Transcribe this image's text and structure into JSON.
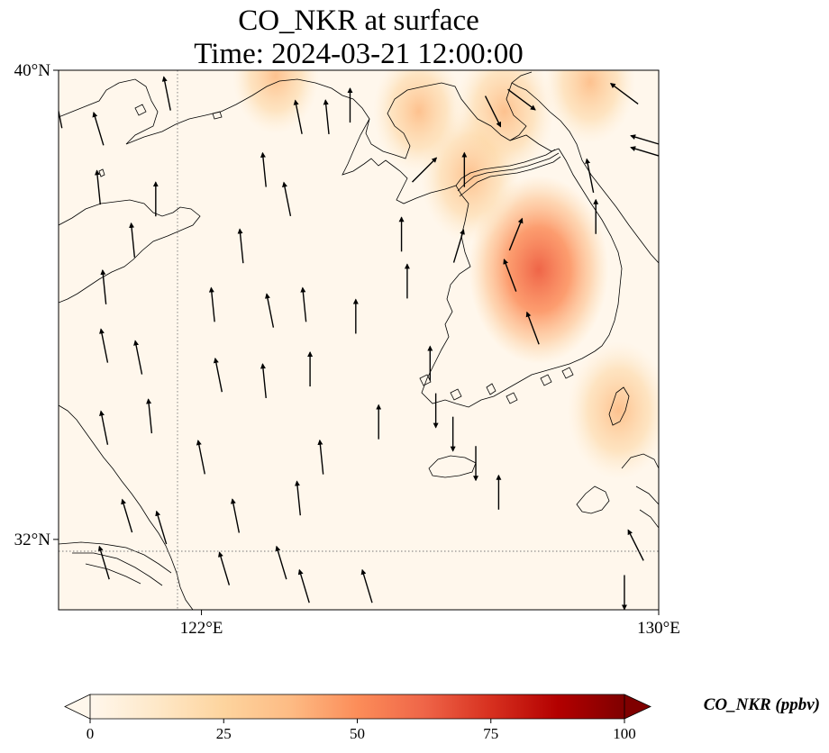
{
  "title": {
    "line1": "CO_NKR at surface",
    "line2": "Time: 2024-03-21 12:00:00"
  },
  "map": {
    "lon_range": [
      119.5,
      130
    ],
    "lat_range": [
      30.8,
      40
    ],
    "x_ticks": [
      {
        "value": 122,
        "label": "122°E"
      },
      {
        "value": 130,
        "label": "130°E"
      }
    ],
    "y_ticks": [
      {
        "value": 40,
        "label": "40°N"
      },
      {
        "value": 32,
        "label": "32°N"
      }
    ],
    "gridlines": "dotted at 122°E and 32°N",
    "features": [
      "coastlines",
      "CO concentration field",
      "wind vectors"
    ],
    "colormap": "OrRd"
  },
  "colorbar": {
    "label": "CO_NKR (ppbv)",
    "range": [
      0,
      100
    ],
    "extend": "both",
    "ticks": [
      {
        "value": 0,
        "label": "0"
      },
      {
        "value": 25,
        "label": "25"
      },
      {
        "value": 50,
        "label": "50"
      },
      {
        "value": 75,
        "label": "75"
      },
      {
        "value": 100,
        "label": "100"
      }
    ],
    "colors": [
      "#fff7ec",
      "#fee8c8",
      "#fdd49e",
      "#fdbb84",
      "#fc8d59",
      "#ef6548",
      "#d7301f",
      "#b30000",
      "#7f0000"
    ]
  },
  "chart_data": {
    "type": "heatmap",
    "title": "CO_NKR at surface\nTime: 2024-03-21 12:00:00",
    "xlabel": "",
    "ylabel": "",
    "xlim": [
      119.5,
      130
    ],
    "ylim": [
      30.8,
      40
    ],
    "value_range": [
      0,
      100
    ],
    "unit": "ppbv",
    "plumes": [
      {
        "lon": 127.9,
        "lat": 36.6,
        "value": 55
      },
      {
        "lon": 127.3,
        "lat": 39.3,
        "value": 30
      },
      {
        "lon": 126.7,
        "lat": 38.2,
        "value": 30
      },
      {
        "lon": 125.8,
        "lat": 39.3,
        "value": 25
      },
      {
        "lon": 123.3,
        "lat": 39.9,
        "value": 22
      },
      {
        "lon": 129.3,
        "lat": 34.2,
        "value": 32
      },
      {
        "lon": 128.8,
        "lat": 39.8,
        "value": 25
      }
    ],
    "wind_vectors": [
      {
        "lon": 119.5,
        "lat": 39.3,
        "u": -0.2,
        "v": 1
      },
      {
        "lon": 120.2,
        "lat": 39.0,
        "u": -0.3,
        "v": 1
      },
      {
        "lon": 120.2,
        "lat": 38.0,
        "u": -0.1,
        "v": 1
      },
      {
        "lon": 121.2,
        "lat": 37.8,
        "u": 0,
        "v": 1
      },
      {
        "lon": 121.4,
        "lat": 39.6,
        "u": -0.2,
        "v": 1
      },
      {
        "lon": 122.7,
        "lat": 37.0,
        "u": -0.1,
        "v": 1
      },
      {
        "lon": 123.1,
        "lat": 38.3,
        "u": -0.1,
        "v": 1
      },
      {
        "lon": 123.5,
        "lat": 37.8,
        "u": -0.2,
        "v": 1
      },
      {
        "lon": 123.7,
        "lat": 39.2,
        "u": -0.2,
        "v": 1
      },
      {
        "lon": 124.2,
        "lat": 39.2,
        "u": -0.1,
        "v": 1
      },
      {
        "lon": 124.6,
        "lat": 39.4,
        "u": 0,
        "v": 1
      },
      {
        "lon": 120.8,
        "lat": 37.1,
        "u": -0.1,
        "v": 1
      },
      {
        "lon": 120.3,
        "lat": 36.3,
        "u": -0.1,
        "v": 1
      },
      {
        "lon": 122.2,
        "lat": 36.0,
        "u": -0.1,
        "v": 1
      },
      {
        "lon": 123.2,
        "lat": 35.9,
        "u": -0.2,
        "v": 1
      },
      {
        "lon": 123.8,
        "lat": 36.0,
        "u": -0.1,
        "v": 1
      },
      {
        "lon": 124.7,
        "lat": 35.8,
        "u": 0,
        "v": 1
      },
      {
        "lon": 120.3,
        "lat": 35.3,
        "u": -0.2,
        "v": 1
      },
      {
        "lon": 120.9,
        "lat": 35.1,
        "u": -0.2,
        "v": 1
      },
      {
        "lon": 122.3,
        "lat": 34.8,
        "u": -0.2,
        "v": 1
      },
      {
        "lon": 123.1,
        "lat": 34.7,
        "u": -0.1,
        "v": 1
      },
      {
        "lon": 123.9,
        "lat": 34.9,
        "u": 0,
        "v": 1
      },
      {
        "lon": 125.5,
        "lat": 37.2,
        "u": 0,
        "v": 1
      },
      {
        "lon": 125.6,
        "lat": 36.4,
        "u": 0,
        "v": 1
      },
      {
        "lon": 121.1,
        "lat": 34.1,
        "u": -0.1,
        "v": 1
      },
      {
        "lon": 120.3,
        "lat": 33.9,
        "u": -0.2,
        "v": 1
      },
      {
        "lon": 122.0,
        "lat": 33.4,
        "u": -0.2,
        "v": 1
      },
      {
        "lon": 124.1,
        "lat": 33.4,
        "u": -0.1,
        "v": 1
      },
      {
        "lon": 125.1,
        "lat": 34.0,
        "u": 0,
        "v": 1
      },
      {
        "lon": 123.7,
        "lat": 32.7,
        "u": -0.1,
        "v": 1
      },
      {
        "lon": 122.6,
        "lat": 32.4,
        "u": -0.2,
        "v": 1
      },
      {
        "lon": 120.7,
        "lat": 32.4,
        "u": -0.3,
        "v": 1
      },
      {
        "lon": 121.3,
        "lat": 32.2,
        "u": -0.3,
        "v": 1
      },
      {
        "lon": 120.3,
        "lat": 31.6,
        "u": -0.3,
        "v": 1
      },
      {
        "lon": 122.4,
        "lat": 31.5,
        "u": -0.3,
        "v": 1
      },
      {
        "lon": 123.4,
        "lat": 31.6,
        "u": -0.3,
        "v": 1
      },
      {
        "lon": 124.9,
        "lat": 31.2,
        "u": -0.3,
        "v": 1
      },
      {
        "lon": 123.8,
        "lat": 31.2,
        "u": -0.3,
        "v": 1
      },
      {
        "lon": 128.8,
        "lat": 38.2,
        "u": -0.2,
        "v": 1
      },
      {
        "lon": 126.5,
        "lat": 37.0,
        "u": 0.3,
        "v": 1
      },
      {
        "lon": 127.5,
        "lat": 37.2,
        "u": 0.4,
        "v": 1
      },
      {
        "lon": 127.1,
        "lat": 39.3,
        "u": 0.5,
        "v": -1
      },
      {
        "lon": 127.6,
        "lat": 39.5,
        "u": 0.8,
        "v": -0.6
      },
      {
        "lon": 129.4,
        "lat": 39.6,
        "u": -0.8,
        "v": 0.6
      },
      {
        "lon": 129.8,
        "lat": 38.8,
        "u": -1,
        "v": 0.3
      },
      {
        "lon": 129.8,
        "lat": 38.6,
        "u": -1,
        "v": 0.3
      },
      {
        "lon": 126.6,
        "lat": 38.3,
        "u": 0,
        "v": 1
      },
      {
        "lon": 125.9,
        "lat": 38.3,
        "u": 0.5,
        "v": 0.5
      },
      {
        "lon": 127.8,
        "lat": 35.6,
        "u": -0.3,
        "v": 0.8
      },
      {
        "lon": 127.4,
        "lat": 36.5,
        "u": -0.3,
        "v": 0.8
      },
      {
        "lon": 126.0,
        "lat": 35.0,
        "u": 0,
        "v": 1
      },
      {
        "lon": 126.4,
        "lat": 33.8,
        "u": 0,
        "v": -1
      },
      {
        "lon": 126.8,
        "lat": 33.3,
        "u": 0,
        "v": -1
      },
      {
        "lon": 127.2,
        "lat": 32.8,
        "u": 0,
        "v": 1
      },
      {
        "lon": 126.1,
        "lat": 34.2,
        "u": 0,
        "v": -1
      },
      {
        "lon": 129.6,
        "lat": 31.9,
        "u": -0.4,
        "v": 0.8
      },
      {
        "lon": 129.4,
        "lat": 31.1,
        "u": 0,
        "v": -1
      },
      {
        "lon": 128.9,
        "lat": 37.5,
        "u": 0,
        "v": 1
      }
    ]
  }
}
